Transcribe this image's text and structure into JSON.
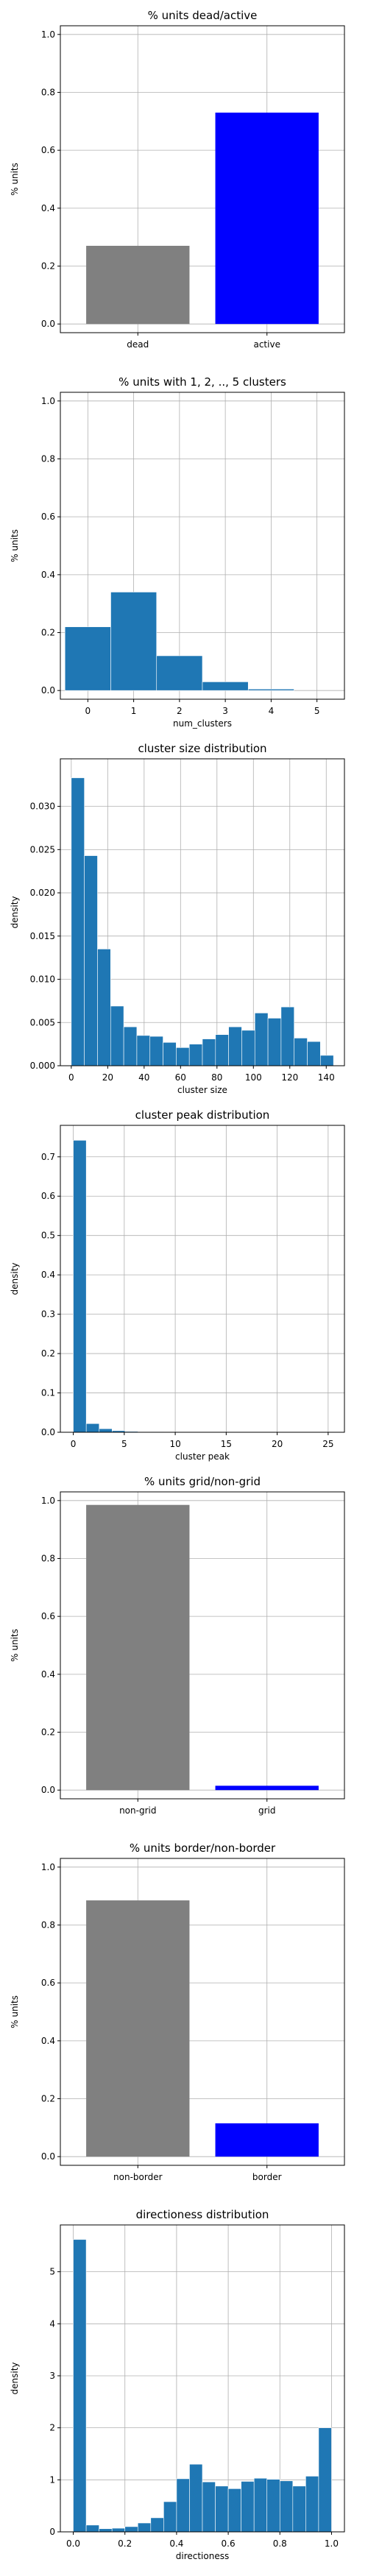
{
  "chart_data": [
    {
      "id": "dead-active",
      "type": "bar",
      "title": "% units dead/active",
      "xlabel": "",
      "ylabel": "% units",
      "categories": [
        "dead",
        "active"
      ],
      "values": [
        0.27,
        0.73
      ],
      "colors": [
        "#808080",
        "#0000ff"
      ],
      "ylim": [
        -0.03,
        1.03
      ],
      "yticks": [
        "0.0",
        "0.2",
        "0.4",
        "0.6",
        "0.8",
        "1.0"
      ],
      "grid": true
    },
    {
      "id": "num-clusters",
      "type": "bar",
      "title": "% units with 1, 2, .., 5 clusters",
      "xlabel": "num_clusters",
      "ylabel": "% units",
      "x": [
        0,
        1,
        2,
        3,
        4
      ],
      "values": [
        0.22,
        0.34,
        0.12,
        0.03,
        0.005
      ],
      "xticks": [
        "0",
        "1",
        "2",
        "3",
        "4",
        "5"
      ],
      "xlim": [
        -0.6,
        5.6
      ],
      "ylim": [
        -0.03,
        1.03
      ],
      "yticks": [
        "0.0",
        "0.2",
        "0.4",
        "0.6",
        "0.8",
        "1.0"
      ],
      "color": "#1f77b4",
      "grid": true
    },
    {
      "id": "cluster-size",
      "type": "bar",
      "title": "cluster size distribution",
      "xlabel": "cluster size",
      "ylabel": "density",
      "bin_start": 0,
      "bin_width": 7.2,
      "values": [
        0.0333,
        0.0243,
        0.0135,
        0.0069,
        0.0045,
        0.0035,
        0.0034,
        0.0027,
        0.0021,
        0.0025,
        0.0031,
        0.0036,
        0.0045,
        0.0041,
        0.0061,
        0.0055,
        0.0068,
        0.0032,
        0.0028,
        0.0012
      ],
      "xticks": [
        "0",
        "20",
        "40",
        "60",
        "80",
        "100",
        "120",
        "140"
      ],
      "xlim": [
        -6,
        150
      ],
      "ylim": [
        0,
        0.0355
      ],
      "yticks": [
        "0.000",
        "0.005",
        "0.010",
        "0.015",
        "0.020",
        "0.025",
        "0.030"
      ],
      "color": "#1f77b4",
      "grid": true
    },
    {
      "id": "cluster-peak",
      "type": "bar",
      "title": "cluster peak distribution",
      "xlabel": "cluster peak",
      "ylabel": "density",
      "bin_start": 0,
      "bin_width": 1.27,
      "values": [
        0.742,
        0.022,
        0.009,
        0.004,
        0.002,
        0.0015,
        0.001,
        0.0005,
        0.0005,
        0.0005,
        0.0003,
        0.0003,
        0.0002,
        0.0002,
        0.0002,
        0.0001,
        0.0001,
        0.0001,
        0.0001,
        0.0001
      ],
      "xticks": [
        "0",
        "5",
        "10",
        "15",
        "20",
        "25"
      ],
      "xlim": [
        -1.27,
        26.6
      ],
      "ylim": [
        0,
        0.78
      ],
      "yticks": [
        "0.0",
        "0.1",
        "0.2",
        "0.3",
        "0.4",
        "0.5",
        "0.6",
        "0.7"
      ],
      "color": "#1f77b4",
      "grid": true
    },
    {
      "id": "grid-nongrid",
      "type": "bar",
      "title": "% units grid/non-grid",
      "xlabel": "",
      "ylabel": "% units",
      "categories": [
        "non-grid",
        "grid"
      ],
      "values": [
        0.985,
        0.015
      ],
      "colors": [
        "#808080",
        "#0000ff"
      ],
      "ylim": [
        -0.03,
        1.03
      ],
      "yticks": [
        "0.0",
        "0.2",
        "0.4",
        "0.6",
        "0.8",
        "1.0"
      ],
      "grid": true
    },
    {
      "id": "border-nonborder",
      "type": "bar",
      "title": "% units border/non-border",
      "xlabel": "",
      "ylabel": "% units",
      "categories": [
        "non-border",
        "border"
      ],
      "values": [
        0.885,
        0.115
      ],
      "colors": [
        "#808080",
        "#0000ff"
      ],
      "ylim": [
        -0.03,
        1.03
      ],
      "yticks": [
        "0.0",
        "0.2",
        "0.4",
        "0.6",
        "0.8",
        "1.0"
      ],
      "grid": true
    },
    {
      "id": "directioness",
      "type": "bar",
      "title": "directioness distribution",
      "xlabel": "directioness",
      "ylabel": "density",
      "bin_start": 0,
      "bin_width": 0.05,
      "values": [
        5.62,
        0.13,
        0.06,
        0.07,
        0.1,
        0.17,
        0.27,
        0.58,
        1.02,
        1.3,
        0.96,
        0.88,
        0.83,
        0.97,
        1.03,
        1.01,
        0.98,
        0.88,
        1.07,
        2.0
      ],
      "xticks": [
        "0.0",
        "0.2",
        "0.4",
        "0.6",
        "0.8",
        "1.0"
      ],
      "xlim": [
        -0.05,
        1.05
      ],
      "ylim": [
        0,
        5.9
      ],
      "yticks": [
        "0",
        "1",
        "2",
        "3",
        "4",
        "5"
      ],
      "color": "#1f77b4",
      "grid": true
    }
  ]
}
